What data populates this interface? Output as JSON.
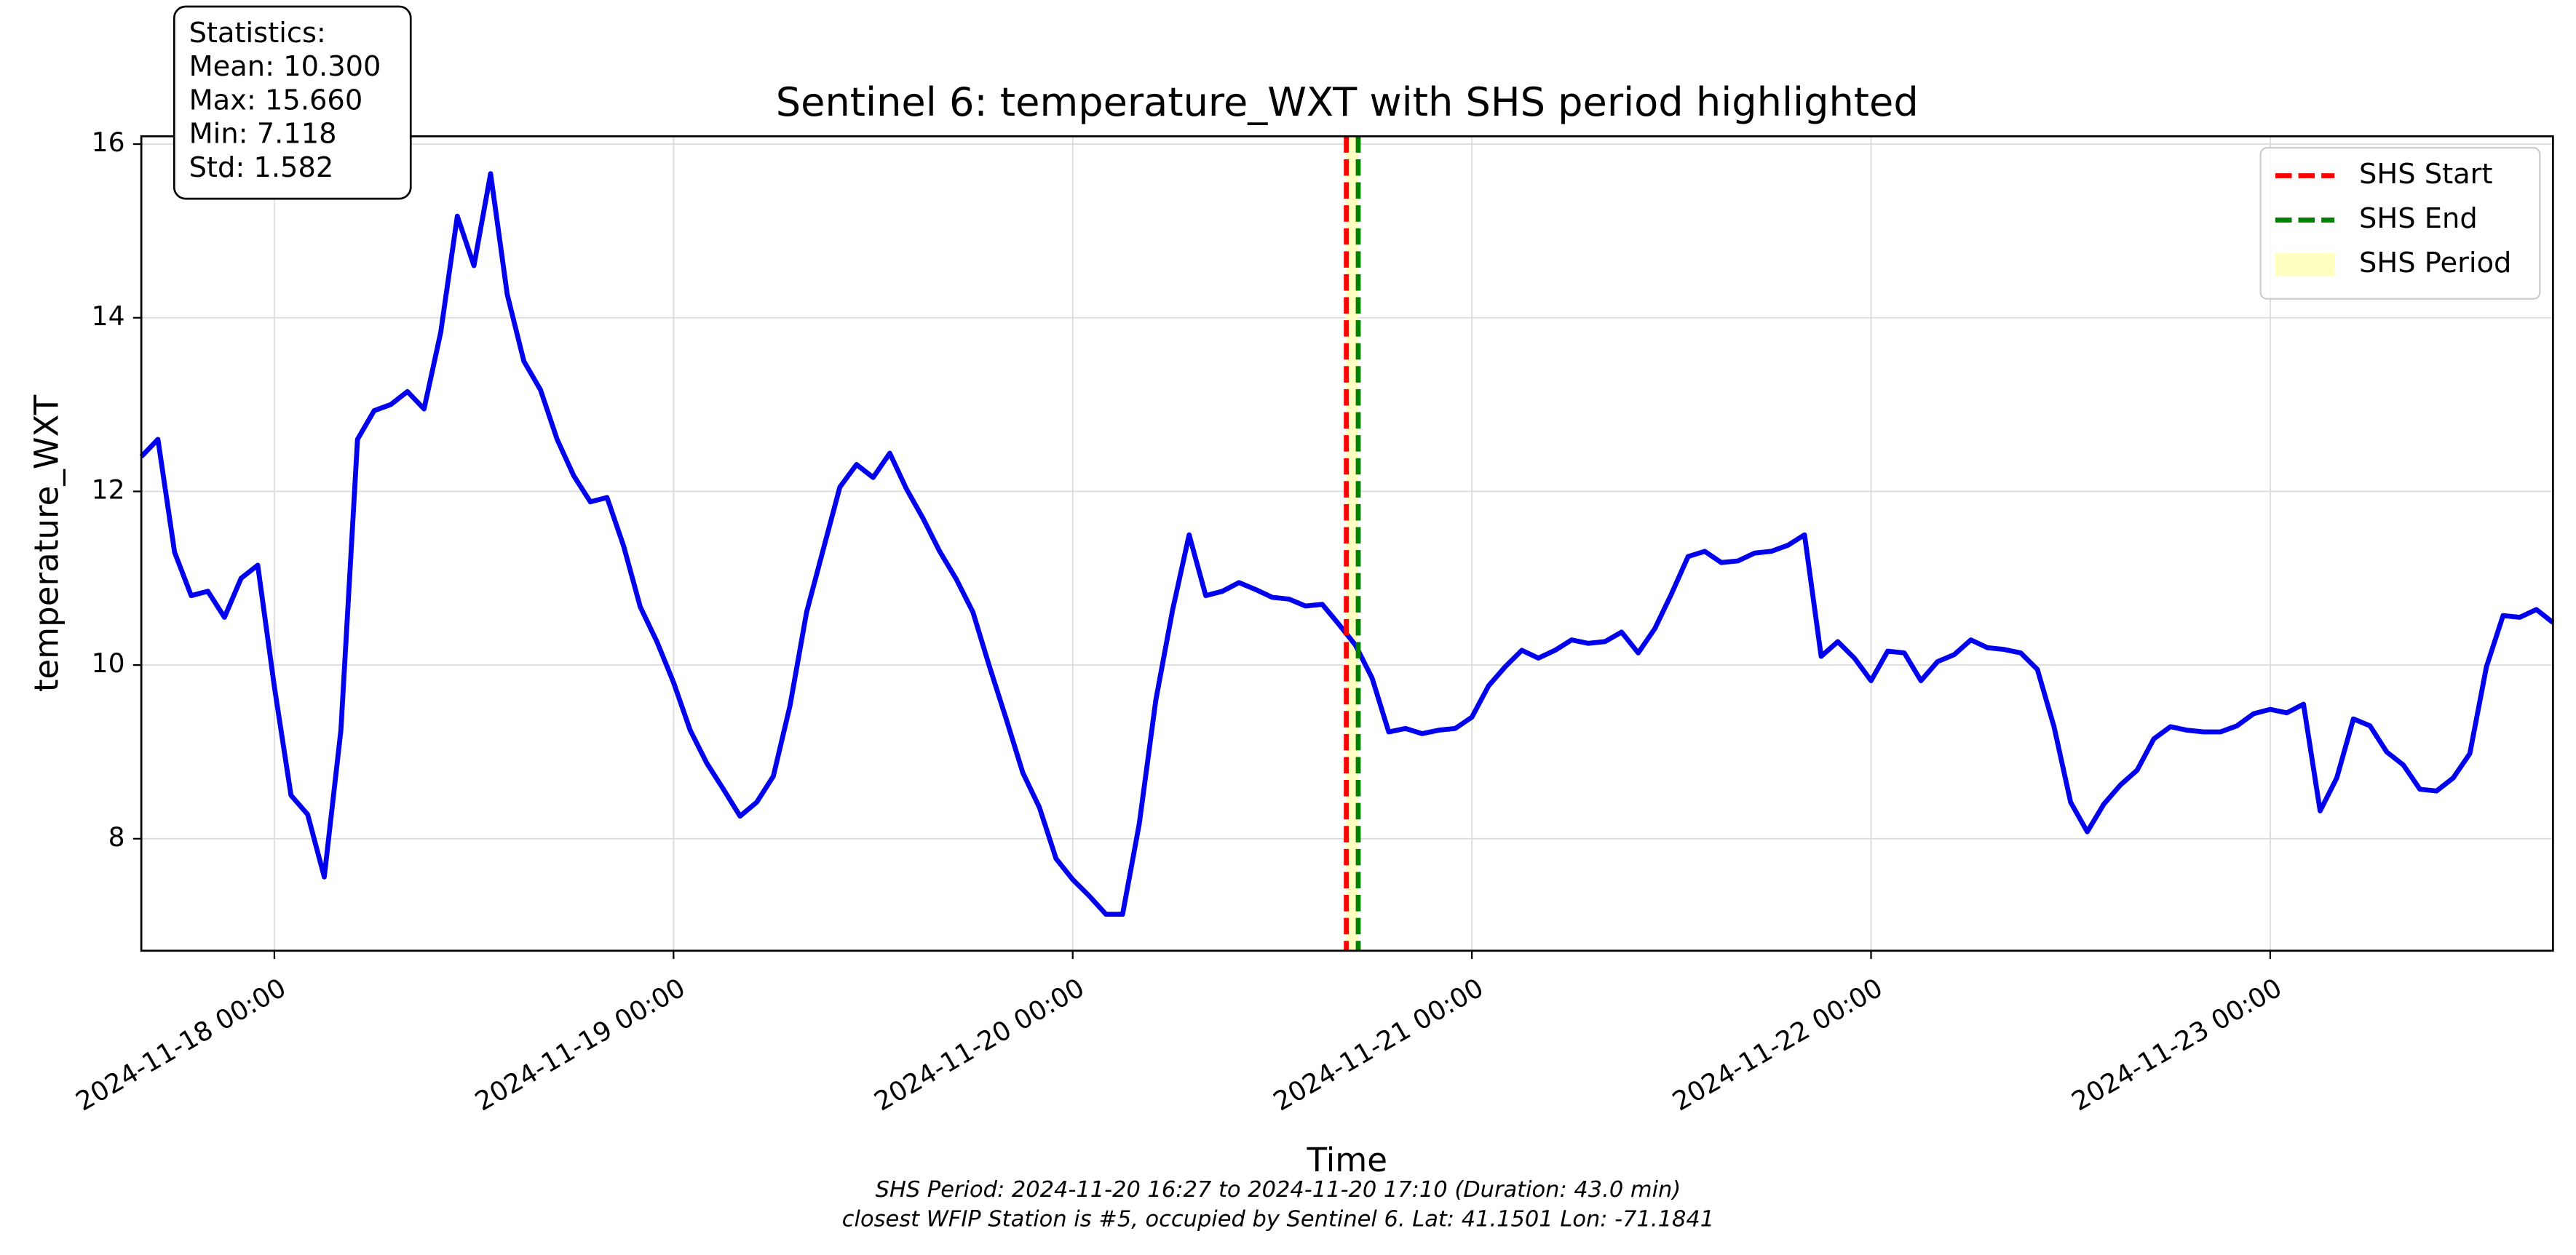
{
  "chart_data": {
    "type": "line",
    "title": "Sentinel 6: temperature_WXT with SHS period highlighted",
    "xlabel": "Time",
    "ylabel": "temperature_WXT",
    "x": [
      "2024-11-17 16:00",
      "2024-11-17 17:00",
      "2024-11-17 18:00",
      "2024-11-17 19:00",
      "2024-11-17 20:00",
      "2024-11-17 21:00",
      "2024-11-17 22:00",
      "2024-11-17 23:00",
      "2024-11-18 00:00",
      "2024-11-18 01:00",
      "2024-11-18 02:00",
      "2024-11-18 03:00",
      "2024-11-18 04:00",
      "2024-11-18 05:00",
      "2024-11-18 06:00",
      "2024-11-18 07:00",
      "2024-11-18 08:00",
      "2024-11-18 09:00",
      "2024-11-18 10:00",
      "2024-11-18 11:00",
      "2024-11-18 12:00",
      "2024-11-18 13:00",
      "2024-11-18 14:00",
      "2024-11-18 15:00",
      "2024-11-18 16:00",
      "2024-11-18 17:00",
      "2024-11-18 18:00",
      "2024-11-18 19:00",
      "2024-11-18 20:00",
      "2024-11-18 21:00",
      "2024-11-18 22:00",
      "2024-11-18 23:00",
      "2024-11-19 00:00",
      "2024-11-19 01:00",
      "2024-11-19 02:00",
      "2024-11-19 03:00",
      "2024-11-19 04:00",
      "2024-11-19 05:00",
      "2024-11-19 06:00",
      "2024-11-19 07:00",
      "2024-11-19 08:00",
      "2024-11-19 09:00",
      "2024-11-19 10:00",
      "2024-11-19 11:00",
      "2024-11-19 12:00",
      "2024-11-19 13:00",
      "2024-11-19 14:00",
      "2024-11-19 15:00",
      "2024-11-19 16:00",
      "2024-11-19 17:00",
      "2024-11-19 18:00",
      "2024-11-19 19:00",
      "2024-11-19 20:00",
      "2024-11-19 21:00",
      "2024-11-19 22:00",
      "2024-11-19 23:00",
      "2024-11-20 00:00",
      "2024-11-20 01:00",
      "2024-11-20 02:00",
      "2024-11-20 03:00",
      "2024-11-20 04:00",
      "2024-11-20 05:00",
      "2024-11-20 06:00",
      "2024-11-20 07:00",
      "2024-11-20 08:00",
      "2024-11-20 09:00",
      "2024-11-20 10:00",
      "2024-11-20 11:00",
      "2024-11-20 12:00",
      "2024-11-20 13:00",
      "2024-11-20 14:00",
      "2024-11-20 15:00",
      "2024-11-20 16:00",
      "2024-11-20 17:00",
      "2024-11-20 18:00",
      "2024-11-20 19:00",
      "2024-11-20 20:00",
      "2024-11-20 21:00",
      "2024-11-20 22:00",
      "2024-11-20 23:00",
      "2024-11-21 00:00",
      "2024-11-21 01:00",
      "2024-11-21 02:00",
      "2024-11-21 03:00",
      "2024-11-21 04:00",
      "2024-11-21 05:00",
      "2024-11-21 06:00",
      "2024-11-21 07:00",
      "2024-11-21 08:00",
      "2024-11-21 09:00",
      "2024-11-21 10:00",
      "2024-11-21 11:00",
      "2024-11-21 12:00",
      "2024-11-21 13:00",
      "2024-11-21 14:00",
      "2024-11-21 15:00",
      "2024-11-21 16:00",
      "2024-11-21 17:00",
      "2024-11-21 18:00",
      "2024-11-21 19:00",
      "2024-11-21 20:00",
      "2024-11-21 21:00",
      "2024-11-21 22:00",
      "2024-11-21 23:00",
      "2024-11-22 00:00",
      "2024-11-22 01:00",
      "2024-11-22 02:00",
      "2024-11-22 03:00",
      "2024-11-22 04:00",
      "2024-11-22 05:00",
      "2024-11-22 06:00",
      "2024-11-22 07:00",
      "2024-11-22 08:00",
      "2024-11-22 09:00",
      "2024-11-22 10:00",
      "2024-11-22 11:00",
      "2024-11-22 12:00",
      "2024-11-22 13:00",
      "2024-11-22 14:00",
      "2024-11-22 15:00",
      "2024-11-22 16:00",
      "2024-11-22 17:00",
      "2024-11-22 18:00",
      "2024-11-22 19:00",
      "2024-11-22 20:00",
      "2024-11-22 21:00",
      "2024-11-22 22:00",
      "2024-11-22 23:00",
      "2024-11-23 00:00",
      "2024-11-23 01:00",
      "2024-11-23 02:00",
      "2024-11-23 03:00",
      "2024-11-23 04:00",
      "2024-11-23 05:00",
      "2024-11-23 06:00",
      "2024-11-23 07:00",
      "2024-11-23 08:00",
      "2024-11-23 09:00",
      "2024-11-23 10:00",
      "2024-11-23 11:00",
      "2024-11-23 12:00",
      "2024-11-23 13:00",
      "2024-11-23 14:00",
      "2024-11-23 15:00",
      "2024-11-23 16:00",
      "2024-11-23 17:00"
    ],
    "values": [
      12.4,
      12.6,
      11.3,
      10.8,
      10.85,
      10.55,
      11.0,
      11.15,
      9.75,
      8.5,
      8.28,
      7.56,
      9.25,
      12.6,
      12.93,
      13.0,
      13.15,
      12.95,
      13.83,
      15.17,
      14.6,
      15.66,
      14.27,
      13.5,
      13.17,
      12.6,
      12.18,
      11.88,
      11.93,
      11.37,
      10.67,
      10.27,
      9.8,
      9.25,
      8.87,
      8.57,
      8.26,
      8.42,
      8.72,
      9.53,
      10.61,
      11.33,
      12.05,
      12.31,
      12.16,
      12.44,
      12.03,
      11.69,
      11.31,
      10.99,
      10.61,
      9.98,
      9.38,
      8.76,
      8.36,
      7.77,
      7.53,
      7.34,
      7.13,
      7.13,
      8.17,
      9.6,
      10.63,
      11.5,
      10.8,
      10.85,
      10.95,
      10.87,
      10.78,
      10.76,
      10.68,
      10.7,
      10.47,
      10.23,
      9.85,
      9.23,
      9.27,
      9.21,
      9.25,
      9.27,
      9.4,
      9.76,
      9.98,
      10.17,
      10.08,
      10.17,
      10.29,
      10.25,
      10.27,
      10.38,
      10.14,
      10.42,
      10.82,
      11.25,
      11.31,
      11.18,
      11.2,
      11.29,
      11.31,
      11.38,
      11.5,
      10.1,
      10.27,
      10.08,
      9.82,
      10.16,
      10.14,
      9.82,
      10.04,
      10.12,
      10.29,
      10.2,
      10.18,
      10.14,
      9.95,
      9.29,
      8.42,
      8.08,
      8.4,
      8.62,
      8.79,
      9.15,
      9.29,
      9.25,
      9.23,
      9.23,
      9.3,
      9.44,
      9.49,
      9.45,
      9.55,
      8.32,
      8.7,
      9.38,
      9.3,
      9.0,
      8.85,
      8.57,
      8.55,
      8.7,
      8.98,
      9.98,
      10.57,
      10.55,
      10.64,
      10.49
    ],
    "color": "#0000ee",
    "xlim": [
      "2024-11-17 16:00",
      "2024-11-23 17:00"
    ],
    "xticks": [
      "2024-11-18 00:00",
      "2024-11-19 00:00",
      "2024-11-20 00:00",
      "2024-11-21 00:00",
      "2024-11-22 00:00",
      "2024-11-23 00:00"
    ],
    "ylim": [
      6.71,
      16.09
    ],
    "yticks": [
      8,
      10,
      12,
      14,
      16
    ],
    "grid": true,
    "vlines": [
      {
        "name": "SHS Start",
        "x": "2024-11-20 16:27",
        "color": "#ff0000"
      },
      {
        "name": "SHS End",
        "x": "2024-11-20 17:10",
        "color": "#008000"
      }
    ],
    "span": {
      "name": "SHS Period",
      "color": "#ffffc0"
    },
    "legend": "upper right",
    "stats_box": [
      "Statistics:",
      "Mean: 10.300",
      "Max: 15.660",
      "Min: 7.118",
      "Std: 1.582"
    ],
    "footnotes": [
      "SHS Period: 2024-11-20 16:27 to 2024-11-20 17:10 (Duration: 43.0 min)",
      "closest WFIP Station is #5, occupied by Sentinel 6. Lat: 41.1501 Lon: -71.1841"
    ]
  }
}
